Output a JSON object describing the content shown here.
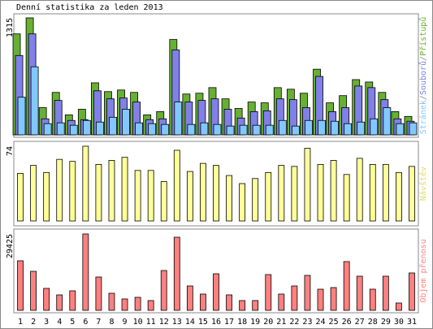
{
  "chart_data": [
    {
      "type": "bar",
      "title": "Denní statistika za leden 2013",
      "categories": [
        "1",
        "2",
        "3",
        "4",
        "5",
        "6",
        "7",
        "8",
        "9",
        "10",
        "11",
        "12",
        "13",
        "14",
        "15",
        "16",
        "17",
        "18",
        "19",
        "20",
        "21",
        "22",
        "23",
        "24",
        "25",
        "26",
        "27",
        "28",
        "29",
        "30",
        "31"
      ],
      "weekend_days": [
        "5",
        "6",
        "12",
        "13",
        "19",
        "20",
        "26",
        "27"
      ],
      "weekend_color": "#66aa33",
      "legend_separator": "/",
      "ylim": [
        0,
        1315
      ],
      "yticks": [
        1315
      ],
      "series": [
        {
          "name": "Přístupů",
          "color": "#66b032",
          "values": [
            1135,
            1315,
            306,
            477,
            225,
            288,
            585,
            486,
            504,
            477,
            225,
            261,
            1072,
            459,
            468,
            531,
            405,
            297,
            369,
            360,
            531,
            513,
            468,
            738,
            360,
            441,
            621,
            594,
            477,
            261,
            207
          ]
        },
        {
          "name": "Souborů",
          "color": "#8080e8",
          "values": [
            892,
            1135,
            180,
            387,
            162,
            171,
            495,
            405,
            414,
            369,
            171,
            180,
            955,
            369,
            387,
            405,
            288,
            189,
            261,
            270,
            405,
            396,
            306,
            657,
            261,
            306,
            549,
            531,
            396,
            180,
            153
          ]
        },
        {
          "name": "Stránek",
          "color": "#80c8ff",
          "values": [
            423,
            765,
            126,
            135,
            108,
            162,
            144,
            198,
            288,
            135,
            126,
            117,
            369,
            117,
            135,
            117,
            99,
            108,
            108,
            108,
            162,
            99,
            162,
            162,
            153,
            126,
            144,
            180,
            306,
            126,
            135
          ]
        }
      ]
    },
    {
      "type": "bar",
      "ylim": [
        0,
        74
      ],
      "yticks": [
        74
      ],
      "series": [
        {
          "name": "Návštěv",
          "color": "#ffff99",
          "legend_color": "#dddd66",
          "values": [
            47,
            55,
            48,
            61,
            59,
            74,
            56,
            60,
            63,
            50,
            50,
            39,
            70,
            49,
            57,
            55,
            45,
            37,
            42,
            48,
            55,
            54,
            72,
            56,
            60,
            46,
            62,
            56,
            56,
            48,
            54
          ]
        }
      ]
    },
    {
      "type": "bar",
      "ylim": [
        0,
        29425
      ],
      "yticks": [
        29425
      ],
      "series": [
        {
          "name": "Objem přenosu",
          "color": "#ff8080",
          "values": [
            19095,
            15026,
            8452,
            5948,
            7513,
            29425,
            12834,
            6574,
            4383,
            5008,
            3756,
            15339,
            28173,
            9391,
            6261,
            14087,
            5948,
            3756,
            3756,
            13774,
            6261,
            9391,
            13461,
            8139,
            8765,
            18782,
            13148,
            8139,
            13148,
            2817,
            14400
          ]
        }
      ]
    }
  ]
}
